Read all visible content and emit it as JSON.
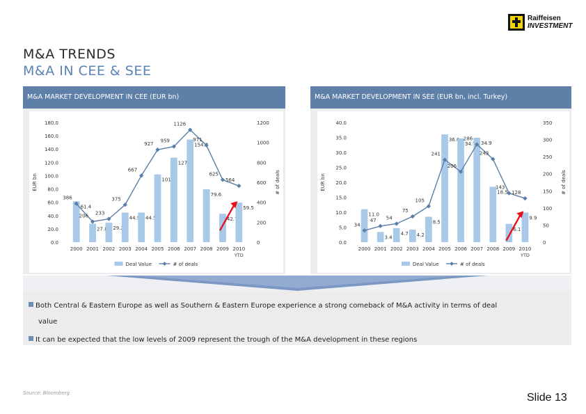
{
  "brand": {
    "line1": "Raiffeisen",
    "line2": "INVESTMENT"
  },
  "title": {
    "line1": "M&A TRENDS",
    "line2": "M&A IN CEE & SEE"
  },
  "panels": [
    {
      "header": "M&A MARKET DEVELOPMENT IN CEE (EUR bn)"
    },
    {
      "header": "M&A MARKET DEVELOPMENT IN SEE (EUR bn, incl. Turkey)"
    }
  ],
  "summary": {
    "bullet1a": "Both Central & Eastern Europe as well as Southern & Eastern Europe experience a strong comeback of M&A activity in terms of deal",
    "bullet1b": "value",
    "bullet2": "It can be expected that the low levels of 2009 represent the trough of the M&A development in these regions"
  },
  "source": "Source: Bloomberg",
  "slide": "Slide 13",
  "colors": {
    "bar": "#a9c9e8",
    "line": "#5a7ea8",
    "arrow": "#e8101e",
    "header": "#5e7fa8"
  },
  "chart_data": [
    {
      "type": "bar",
      "title": "M&A MARKET DEVELOPMENT IN CEE (EUR bn)",
      "categories": [
        "2000",
        "2001",
        "2002",
        "2003",
        "2004",
        "2005",
        "2006",
        "2007",
        "2008",
        "2009",
        "2010"
      ],
      "category_sublabels": [
        "",
        "",
        "",
        "",
        "",
        "",
        "",
        "",
        "",
        "",
        "YTD"
      ],
      "ylabel": "EUR bn",
      "y2label": "# of deals",
      "ylim": [
        0,
        180
      ],
      "y_ticks": [
        "0.0",
        "20.0",
        "40.0",
        "60.0",
        "80.0",
        "100.0",
        "120.0",
        "140.0",
        "160.0",
        "180.0"
      ],
      "y2lim": [
        0,
        1200
      ],
      "y2_ticks": [
        "0",
        "200",
        "400",
        "600",
        "800",
        "1000",
        "1200"
      ],
      "series": [
        {
          "name": "Deal Value",
          "type": "bar",
          "values": [
            61.4,
            27.8,
            29.2,
            44.5,
            44.5,
            101.8,
            127.1,
            154.3,
            79.6,
            42.7,
            59.5
          ],
          "labels": [
            "61.4",
            "27.8",
            "29.2",
            "44.5",
            "44.5",
            "101.8",
            "127.1",
            "154.3",
            "79.6",
            "42.7",
            "59.5"
          ]
        },
        {
          "name": "# of deals",
          "type": "line",
          "axis": "secondary",
          "values": [
            386,
            206,
            233,
            375,
            667,
            927,
            959,
            1126,
            971,
            625,
            564
          ],
          "labels": [
            "386",
            "206",
            "233",
            "375",
            "667",
            "927",
            "959",
            "1126",
            "971",
            "625",
            "564"
          ]
        }
      ],
      "legend": "bottom",
      "annotation": "red arrow 2009 to 2010"
    },
    {
      "type": "bar",
      "title": "M&A MARKET DEVELOPMENT IN SEE (EUR bn, incl. Turkey)",
      "categories": [
        "2000",
        "2001",
        "2002",
        "2003",
        "2004",
        "2005",
        "2006",
        "2007",
        "2008",
        "2009",
        "2010"
      ],
      "category_sublabels": [
        "",
        "",
        "",
        "",
        "",
        "",
        "",
        "",
        "",
        "",
        "YTD"
      ],
      "ylabel": "EUR bn",
      "y2label": "# of deals",
      "ylim": [
        0,
        40
      ],
      "y_ticks": [
        "0.0",
        "5.0",
        "10.0",
        "15.0",
        "20.0",
        "25.0",
        "30.0",
        "35.0",
        "40.0"
      ],
      "y2lim": [
        0,
        350
      ],
      "y2_ticks": [
        "0",
        "50",
        "100",
        "150",
        "200",
        "250",
        "300",
        "350"
      ],
      "series": [
        {
          "name": "Deal Value",
          "type": "bar",
          "values": [
            11.0,
            3.4,
            4.7,
            4.2,
            8.5,
            36.0,
            34.7,
            34.9,
            18.5,
            6.1,
            9.9
          ],
          "labels": [
            "11.0",
            "3.4",
            "4.7",
            "4.2",
            "8.5",
            "36.0",
            "34.7",
            "34.9",
            "18.5",
            "6.1",
            "9.9"
          ]
        },
        {
          "name": "# of deals",
          "type": "line",
          "axis": "secondary",
          "values": [
            34,
            47,
            54,
            75,
            105,
            241,
            206,
            286,
            243,
            143,
            128
          ],
          "labels": [
            "34",
            "47",
            "54",
            "75",
            "105",
            "241",
            "206",
            "286",
            "243",
            "143",
            "128"
          ]
        }
      ],
      "legend": "bottom",
      "annotation": "red arrow 2009 to 2010"
    }
  ]
}
